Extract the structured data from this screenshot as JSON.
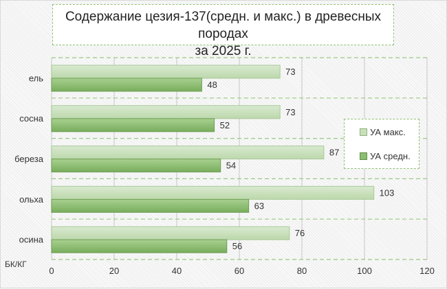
{
  "chart_data": {
    "type": "bar",
    "orientation": "horizontal",
    "title": "Содержание цезия-137(средн. и макс.) в древесных породах за 2025 г.",
    "title_lines": [
      "Содержание цезия-137(средн. и макс.) в древесных породах",
      "за 2025 г."
    ],
    "categories": [
      "ель",
      "сосна",
      "береза",
      "ольха",
      "осина"
    ],
    "series": [
      {
        "name": "УА макс.",
        "values": [
          73,
          73,
          87,
          103,
          76
        ],
        "color": "#c9e0bb"
      },
      {
        "name": "УА средн.",
        "values": [
          48,
          52,
          54,
          63,
          56
        ],
        "color": "#8cbd70"
      }
    ],
    "xlabel": "",
    "ylabel": "БК/КГ",
    "xlim": [
      0,
      120
    ],
    "xticks": [
      0,
      20,
      40,
      60,
      80,
      100,
      120
    ],
    "grid": true,
    "legend": "right"
  }
}
